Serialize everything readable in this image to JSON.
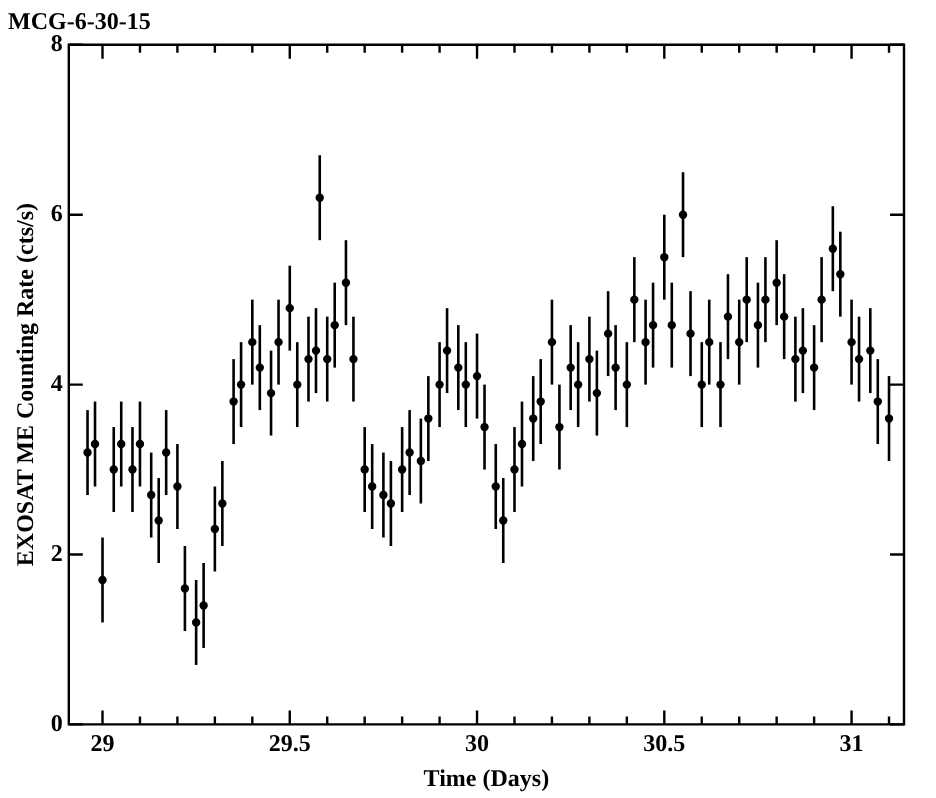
{
  "chart_data": {
    "type": "scatter",
    "title": "MCG-6-30-15",
    "xlabel": "Time (Days)",
    "ylabel": "EXOSAT ME Counting Rate (cts/s)",
    "xlim": [
      28.91,
      31.14
    ],
    "ylim": [
      0,
      8
    ],
    "xticks": [
      {
        "value": 29,
        "label": "29"
      },
      {
        "value": 29.1,
        "label": null
      },
      {
        "value": 29.2,
        "label": null
      },
      {
        "value": 29.3,
        "label": null
      },
      {
        "value": 29.4,
        "label": null
      },
      {
        "value": 29.5,
        "label": "29.5"
      },
      {
        "value": 29.6,
        "label": null
      },
      {
        "value": 29.7,
        "label": null
      },
      {
        "value": 29.8,
        "label": null
      },
      {
        "value": 29.9,
        "label": null
      },
      {
        "value": 30,
        "label": "30"
      },
      {
        "value": 30.1,
        "label": null
      },
      {
        "value": 30.2,
        "label": null
      },
      {
        "value": 30.3,
        "label": null
      },
      {
        "value": 30.4,
        "label": null
      },
      {
        "value": 30.5,
        "label": "30.5"
      },
      {
        "value": 30.6,
        "label": null
      },
      {
        "value": 30.7,
        "label": null
      },
      {
        "value": 30.8,
        "label": null
      },
      {
        "value": 30.9,
        "label": null
      },
      {
        "value": 31,
        "label": "31"
      },
      {
        "value": 31.1,
        "label": null
      }
    ],
    "yticks": [
      0,
      2,
      4,
      6,
      8
    ],
    "grid": false,
    "legend": false,
    "series": [
      {
        "color": "#000000",
        "x": [
          28.96,
          28.98,
          29.0,
          29.03,
          29.05,
          29.08,
          29.1,
          29.13,
          29.15,
          29.17,
          29.2,
          29.22,
          29.25,
          29.27,
          29.3,
          29.32,
          29.35,
          29.37,
          29.4,
          29.42,
          29.45,
          29.47,
          29.5,
          29.52,
          29.55,
          29.57,
          29.58,
          29.6,
          29.62,
          29.65,
          29.67,
          29.7,
          29.72,
          29.75,
          29.77,
          29.8,
          29.82,
          29.85,
          29.87,
          29.9,
          29.92,
          29.95,
          29.97,
          30.0,
          30.02,
          30.05,
          30.07,
          30.1,
          30.12,
          30.15,
          30.17,
          30.2,
          30.22,
          30.25,
          30.27,
          30.3,
          30.32,
          30.35,
          30.37,
          30.4,
          30.42,
          30.45,
          30.47,
          30.5,
          30.52,
          30.55,
          30.57,
          30.6,
          30.62,
          30.65,
          30.67,
          30.7,
          30.72,
          30.75,
          30.77,
          30.8,
          30.82,
          30.85,
          30.87,
          30.9,
          30.92,
          30.95,
          30.97,
          31.0,
          31.02,
          31.05,
          31.07,
          31.1
        ],
        "values": [
          3.2,
          3.3,
          1.7,
          3.0,
          3.3,
          3.0,
          3.3,
          2.7,
          2.4,
          3.2,
          2.8,
          1.6,
          1.2,
          1.4,
          2.3,
          2.6,
          3.8,
          4.0,
          4.5,
          4.2,
          3.9,
          4.5,
          4.9,
          4.0,
          4.3,
          4.4,
          6.2,
          4.3,
          4.7,
          5.2,
          4.3,
          3.0,
          2.8,
          2.7,
          2.6,
          3.0,
          3.2,
          3.1,
          3.6,
          4.0,
          4.4,
          4.2,
          4.0,
          4.1,
          3.5,
          2.8,
          2.4,
          3.0,
          3.3,
          3.6,
          3.8,
          4.5,
          3.5,
          4.2,
          4.0,
          4.3,
          3.9,
          4.6,
          4.2,
          4.0,
          5.0,
          4.5,
          4.7,
          5.5,
          4.7,
          6.0,
          4.6,
          4.0,
          4.5,
          4.0,
          4.8,
          4.5,
          5.0,
          4.7,
          5.0,
          5.2,
          4.8,
          4.3,
          4.4,
          4.2,
          5.0,
          5.6,
          5.3,
          4.5,
          4.3,
          4.4,
          3.8,
          3.6
        ],
        "errors": [
          0.5,
          0.5,
          0.5,
          0.5,
          0.5,
          0.5,
          0.5,
          0.5,
          0.5,
          0.5,
          0.5,
          0.5,
          0.5,
          0.5,
          0.5,
          0.5,
          0.5,
          0.5,
          0.5,
          0.5,
          0.5,
          0.5,
          0.5,
          0.5,
          0.5,
          0.5,
          0.5,
          0.5,
          0.5,
          0.5,
          0.5,
          0.5,
          0.5,
          0.5,
          0.5,
          0.5,
          0.5,
          0.5,
          0.5,
          0.5,
          0.5,
          0.5,
          0.5,
          0.5,
          0.5,
          0.5,
          0.5,
          0.5,
          0.5,
          0.5,
          0.5,
          0.5,
          0.5,
          0.5,
          0.5,
          0.5,
          0.5,
          0.5,
          0.5,
          0.5,
          0.5,
          0.5,
          0.5,
          0.5,
          0.5,
          0.5,
          0.5,
          0.5,
          0.5,
          0.5,
          0.5,
          0.5,
          0.5,
          0.5,
          0.5,
          0.5,
          0.5,
          0.5,
          0.5,
          0.5,
          0.5,
          0.5,
          0.5,
          0.5,
          0.5,
          0.5,
          0.5,
          0.5
        ]
      }
    ]
  }
}
